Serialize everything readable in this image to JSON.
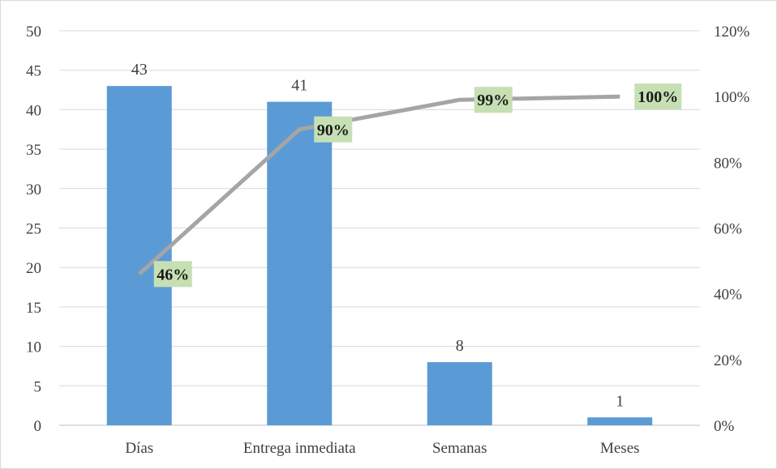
{
  "chart_data": {
    "type": "bar",
    "categories": [
      "Días",
      "Entrega inmediata",
      "Semanas",
      "Meses"
    ],
    "series": [
      {
        "values": [
          43,
          41,
          8,
          1
        ],
        "kind": "bar",
        "axis": "left"
      },
      {
        "values": [
          46,
          90,
          99,
          100
        ],
        "kind": "line",
        "axis": "right"
      }
    ],
    "bar_value_labels": [
      "43",
      "41",
      "8",
      "1"
    ],
    "line_value_labels": [
      "46%",
      "90%",
      "99%",
      "100%"
    ],
    "left_axis": {
      "ylim": [
        0,
        50
      ],
      "ticks": [
        "0",
        "5",
        "10",
        "15",
        "20",
        "25",
        "30",
        "35",
        "40",
        "45",
        "50"
      ]
    },
    "right_axis": {
      "ylim": [
        0,
        120
      ],
      "ticks": [
        "0%",
        "20%",
        "40%",
        "60%",
        "80%",
        "100%",
        "120%"
      ]
    },
    "grid": true,
    "legend": "none",
    "colors": {
      "bar": "#5b9bd5",
      "line": "#a5a5a5",
      "label_box": "#c6e0b4",
      "grid": "#d9d9d9"
    }
  }
}
